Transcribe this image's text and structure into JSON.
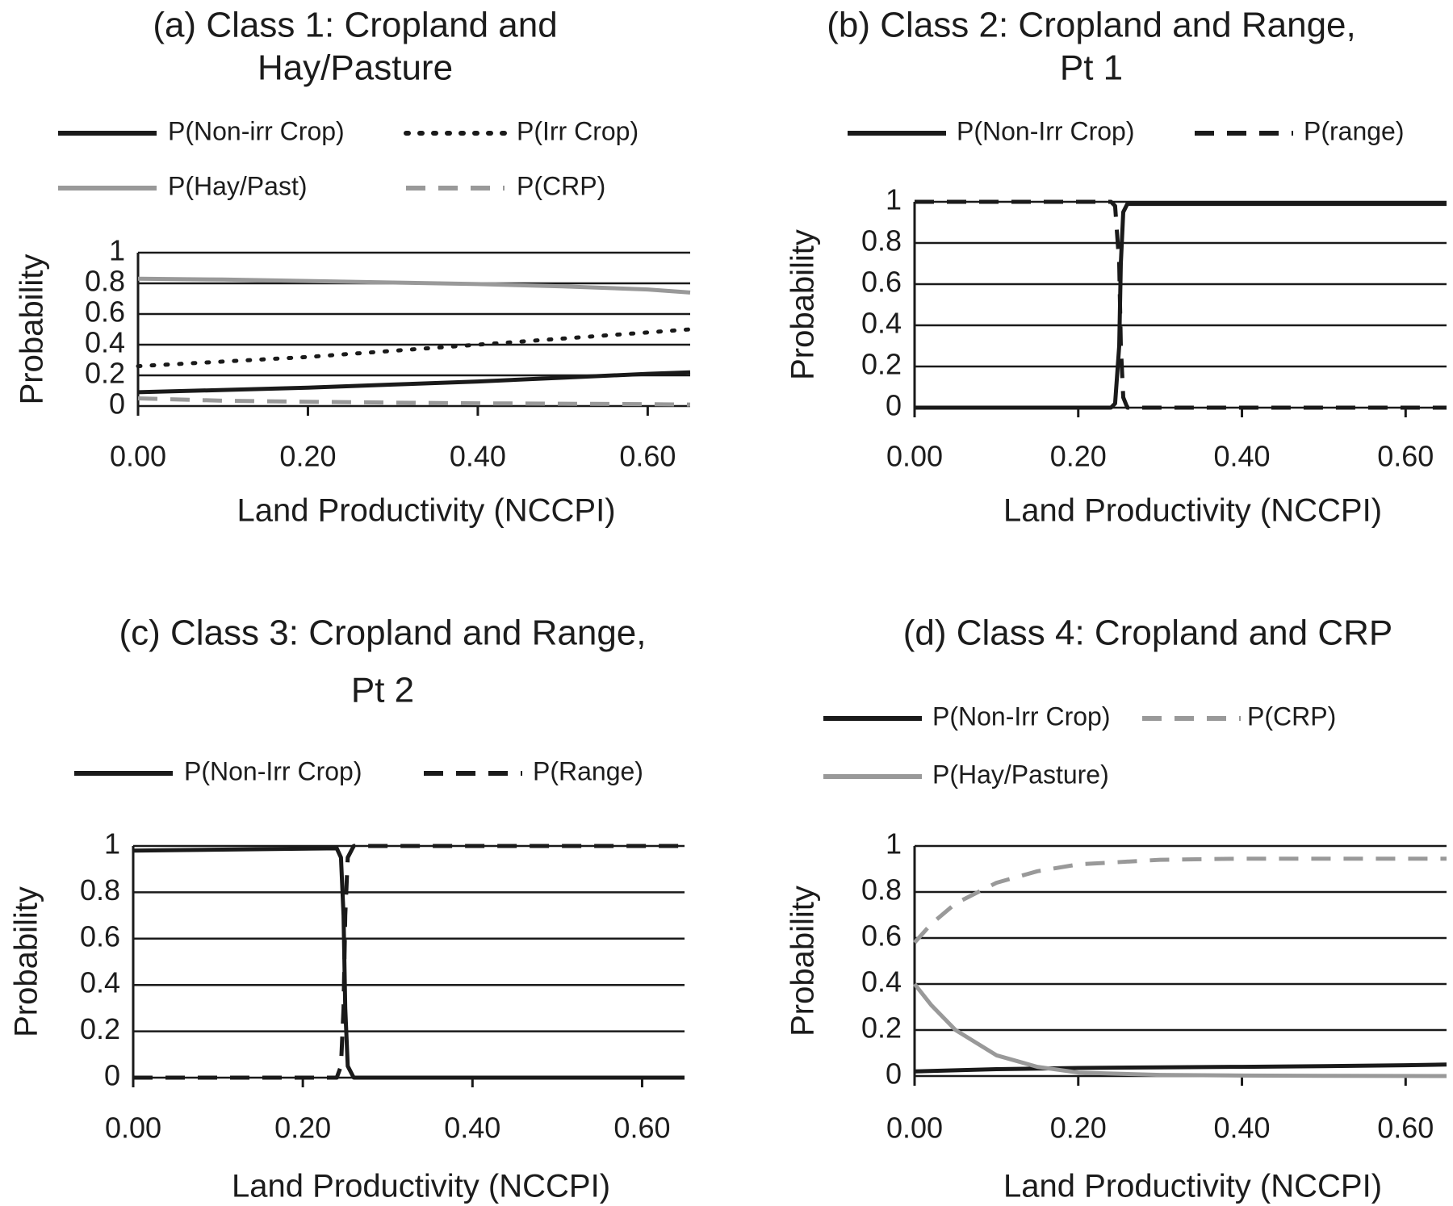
{
  "chart_data": [
    {
      "type": "line",
      "panel_id": "a",
      "title_lines": [
        "(a) Class 1: Cropland and",
        "Hay/Pasture"
      ],
      "xlabel": "Land Productivity (NCCPI)",
      "ylabel": "Probability",
      "xlim": [
        0,
        0.65
      ],
      "ylim": [
        0,
        1
      ],
      "xticks": [
        "0.00",
        "0.20",
        "0.40",
        "0.60"
      ],
      "yticks": [
        "0",
        "0.2",
        "0.4",
        "0.6",
        "0.8",
        "1"
      ],
      "grid": "horizontal",
      "legend_placement": "top",
      "series": [
        {
          "name": "P(Non-irr Crop)",
          "color": "#1a1a1a",
          "style": "solid",
          "x": [
            0,
            0.1,
            0.2,
            0.3,
            0.4,
            0.5,
            0.6,
            0.65
          ],
          "y": [
            0.09,
            0.105,
            0.12,
            0.14,
            0.16,
            0.185,
            0.21,
            0.22
          ]
        },
        {
          "name": "P(Irr Crop)",
          "color": "#1a1a1a",
          "style": "dotted",
          "x": [
            0,
            0.1,
            0.2,
            0.3,
            0.4,
            0.5,
            0.6,
            0.65
          ],
          "y": [
            0.26,
            0.29,
            0.32,
            0.36,
            0.4,
            0.44,
            0.48,
            0.5
          ]
        },
        {
          "name": "P(Hay/Past)",
          "color": "#999999",
          "style": "solid",
          "x": [
            0,
            0.1,
            0.2,
            0.3,
            0.4,
            0.5,
            0.6,
            0.65
          ],
          "y": [
            0.83,
            0.825,
            0.815,
            0.805,
            0.795,
            0.78,
            0.76,
            0.74
          ]
        },
        {
          "name": "P(CRP)",
          "color": "#999999",
          "style": "dashed",
          "x": [
            0,
            0.1,
            0.2,
            0.3,
            0.4,
            0.5,
            0.6,
            0.65
          ],
          "y": [
            0.05,
            0.035,
            0.028,
            0.022,
            0.018,
            0.015,
            0.012,
            0.01
          ]
        }
      ]
    },
    {
      "type": "line",
      "panel_id": "b",
      "title_lines": [
        "(b) Class 2:  Cropland and Range,",
        "Pt 1"
      ],
      "xlabel": "Land Productivity (NCCPI)",
      "ylabel": "Probability",
      "xlim": [
        0,
        0.65
      ],
      "ylim": [
        0,
        1
      ],
      "xticks": [
        "0.00",
        "0.20",
        "0.40",
        "0.60"
      ],
      "yticks": [
        "0",
        "0.2",
        "0.4",
        "0.6",
        "0.8",
        "1"
      ],
      "grid": "horizontal",
      "legend_placement": "top",
      "series": [
        {
          "name": "P(Non-Irr Crop)",
          "color": "#1a1a1a",
          "style": "solid",
          "x": [
            0,
            0.24,
            0.245,
            0.25,
            0.252,
            0.255,
            0.26,
            0.65
          ],
          "y": [
            0,
            0,
            0.02,
            0.3,
            0.7,
            0.95,
            0.99,
            0.99
          ]
        },
        {
          "name": "P(range)",
          "color": "#1a1a1a",
          "style": "dashed",
          "x": [
            0,
            0.24,
            0.245,
            0.25,
            0.252,
            0.255,
            0.26,
            0.65
          ],
          "y": [
            1,
            1,
            0.98,
            0.7,
            0.3,
            0.05,
            0,
            0
          ]
        }
      ]
    },
    {
      "type": "line",
      "panel_id": "c",
      "title_lines": [
        "(c) Class 3:  Cropland and Range,",
        "Pt 2"
      ],
      "xlabel": "Land Productivity (NCCPI)",
      "ylabel": "Probability",
      "xlim": [
        0,
        0.65
      ],
      "ylim": [
        0,
        1
      ],
      "xticks": [
        "0.00",
        "0.20",
        "0.40",
        "0.60"
      ],
      "yticks": [
        "0",
        "0.2",
        "0.4",
        "0.6",
        "0.8",
        "1"
      ],
      "grid": "horizontal",
      "legend_placement": "top",
      "series": [
        {
          "name": "P(Non-Irr Crop)",
          "color": "#1a1a1a",
          "style": "solid",
          "x": [
            0,
            0.24,
            0.245,
            0.248,
            0.25,
            0.253,
            0.26,
            0.65
          ],
          "y": [
            0.98,
            0.99,
            0.95,
            0.7,
            0.3,
            0.05,
            0,
            0
          ]
        },
        {
          "name": "P(Range)",
          "color": "#1a1a1a",
          "style": "dashed",
          "x": [
            0,
            0.24,
            0.245,
            0.248,
            0.25,
            0.253,
            0.26,
            0.65
          ],
          "y": [
            0,
            0,
            0.05,
            0.3,
            0.7,
            0.95,
            1,
            1
          ]
        }
      ]
    },
    {
      "type": "line",
      "panel_id": "d",
      "title_lines": [
        "(d) Class 4:  Cropland and CRP"
      ],
      "xlabel": "Land Productivity (NCCPI)",
      "ylabel": "Probability",
      "xlim": [
        0,
        0.65
      ],
      "ylim": [
        0,
        1
      ],
      "xticks": [
        "0.00",
        "0.20",
        "0.40",
        "0.60"
      ],
      "yticks": [
        "0",
        "0.2",
        "0.4",
        "0.6",
        "0.8",
        "1"
      ],
      "grid": "horizontal",
      "legend_placement": "top",
      "series": [
        {
          "name": "P(Non-Irr Crop)",
          "color": "#1a1a1a",
          "style": "solid",
          "x": [
            0,
            0.1,
            0.2,
            0.3,
            0.4,
            0.5,
            0.6,
            0.65
          ],
          "y": [
            0.02,
            0.03,
            0.035,
            0.038,
            0.04,
            0.043,
            0.047,
            0.05
          ]
        },
        {
          "name": "P(CRP)",
          "color": "#999999",
          "style": "dashed",
          "x": [
            0,
            0.02,
            0.05,
            0.1,
            0.15,
            0.2,
            0.3,
            0.4,
            0.5,
            0.65
          ],
          "y": [
            0.58,
            0.66,
            0.75,
            0.84,
            0.89,
            0.92,
            0.94,
            0.945,
            0.945,
            0.945
          ]
        },
        {
          "name": "P(Hay/Pasture)",
          "color": "#999999",
          "style": "solid",
          "x": [
            0,
            0.02,
            0.05,
            0.1,
            0.15,
            0.2,
            0.3,
            0.4,
            0.5,
            0.65
          ],
          "y": [
            0.4,
            0.31,
            0.2,
            0.09,
            0.04,
            0.015,
            0.005,
            0.002,
            0.001,
            0
          ]
        }
      ]
    }
  ]
}
